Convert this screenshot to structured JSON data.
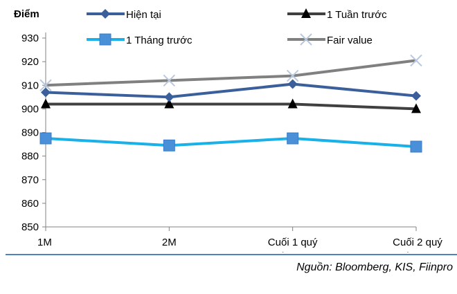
{
  "chart_data": {
    "type": "line",
    "ylabel": "Điểm",
    "categories": [
      [
        "1M"
      ],
      [
        "2M"
      ],
      [
        "Cuối 1 quý",
        "tiếp theo"
      ],
      [
        "Cuối 2 quý",
        "tiếp theo"
      ]
    ],
    "ylim": [
      850,
      930
    ],
    "yticks": [
      850,
      860,
      870,
      880,
      890,
      900,
      910,
      920,
      930
    ],
    "grid": false,
    "legend_position": "top",
    "series": [
      {
        "name": "Hiện tại",
        "values": [
          907,
          905,
          910.5,
          905.5
        ],
        "color": "#3b5f9b",
        "marker": "diamond"
      },
      {
        "name": "1 Tuần trước",
        "values": [
          902,
          902,
          902,
          900
        ],
        "color": "#404040",
        "marker": "triangle"
      },
      {
        "name": "1 Tháng trước",
        "values": [
          887.5,
          884.5,
          887.5,
          884
        ],
        "color": "#1ab0e8",
        "marker": "square"
      },
      {
        "name": "Fair value",
        "values": [
          910,
          912,
          914,
          920.5
        ],
        "color": "#808080",
        "marker": "x"
      }
    ]
  },
  "source": "Nguồn: Bloomberg, KIS, Fiinpro"
}
